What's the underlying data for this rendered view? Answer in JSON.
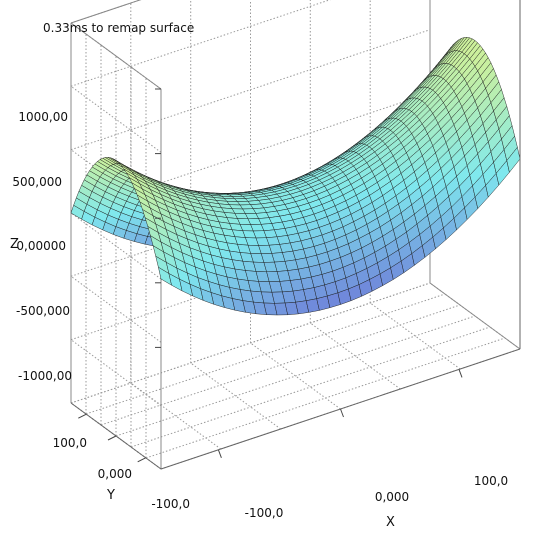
{
  "status": {
    "text": "0.33ms to remap surface"
  },
  "chart_data": {
    "type": "surface",
    "title": "",
    "xlabel": "X",
    "ylabel": "Y",
    "zlabel": "Z",
    "x_ticks": [
      "-100,0",
      "0,000",
      "100,0"
    ],
    "y_ticks": [
      "100,0",
      "0,000",
      "-100,0"
    ],
    "z_ticks": [
      "1000,00",
      "500,000",
      "0,00000",
      "-500,000",
      "-1000,00"
    ],
    "x_range": [
      -150,
      150
    ],
    "y_range": [
      -150,
      150
    ],
    "z_range": [
      -1000,
      1000
    ],
    "function": "z = (x^2 - y^2) / 50 (saddle surface)",
    "grid": true,
    "colormap": [
      "#4a3a9a",
      "#6e7cd8",
      "#7fe8ee",
      "#c8f0a0",
      "#f2f080"
    ]
  }
}
